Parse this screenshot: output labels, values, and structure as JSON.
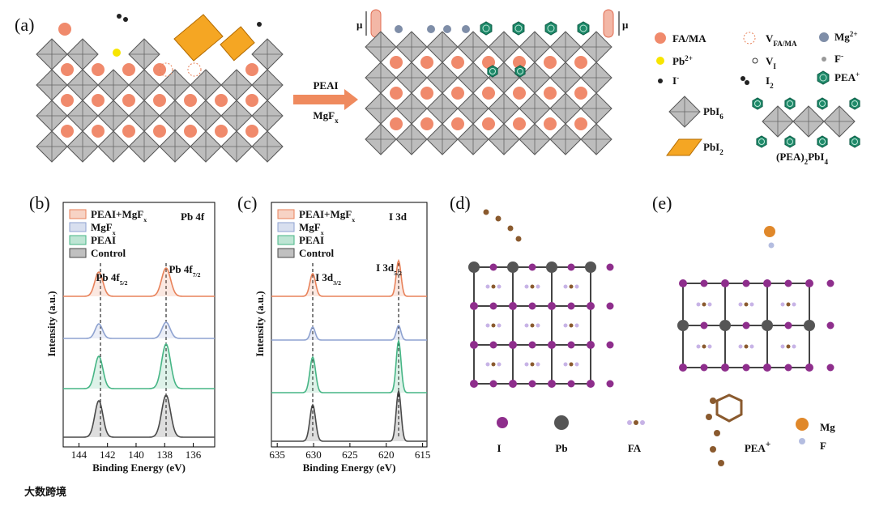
{
  "panel_a": {
    "label": "(a)",
    "mu_left": "μ",
    "mu_right": "μ",
    "arrow_top": [
      {
        "t": "PEAI"
      }
    ],
    "arrow_bottom": [
      {
        "t": "MgF"
      },
      {
        "t": "x",
        "s": "sub"
      }
    ],
    "legend": [
      [
        {
          "t": "FA/MA"
        }
      ],
      [
        {
          "t": "V"
        },
        {
          "t": "FA/MA",
          "s": "sub"
        }
      ],
      [
        {
          "t": "Mg"
        },
        {
          "t": "2+",
          "s": "sup"
        }
      ],
      [
        {
          "t": "Pb"
        },
        {
          "t": "2+",
          "s": "sup"
        }
      ],
      [
        {
          "t": "V"
        },
        {
          "t": "I",
          "s": "sub"
        }
      ],
      [
        {
          "t": "F"
        },
        {
          "t": "-",
          "s": "sup"
        }
      ],
      [
        {
          "t": "I"
        },
        {
          "t": "-",
          "s": "sup"
        }
      ],
      [
        {
          "t": "I"
        },
        {
          "t": "2",
          "s": "sub"
        }
      ],
      [
        {
          "t": "PEA"
        },
        {
          "t": "+",
          "s": "sup"
        }
      ],
      [
        {
          "t": "PbI"
        },
        {
          "t": "6",
          "s": "sub"
        }
      ],
      [
        {
          "t": "PbI"
        },
        {
          "t": "2",
          "s": "sub"
        }
      ],
      [
        {
          "t": "(PEA)"
        },
        {
          "t": "2",
          "s": "sub"
        },
        {
          "t": "PbI"
        },
        {
          "t": "4",
          "s": "sub"
        }
      ]
    ]
  },
  "panel_b": {
    "label": "(b)",
    "x_label": "Binding Energy (eV)",
    "y_label": "Intensity (a.u.)",
    "core_level": "Pb 4f",
    "peaks": [
      [
        {
          "t": "Pb 4f"
        },
        {
          "t": "5/2",
          "s": "sub"
        }
      ],
      [
        {
          "t": "Pb 4f"
        },
        {
          "t": "7/2",
          "s": "sub"
        }
      ]
    ],
    "series": [
      {
        "name": [
          {
            "t": "PEAI+MgF"
          },
          {
            "t": "x",
            "s": "sub"
          }
        ],
        "color": "#e8825a"
      },
      {
        "name": [
          {
            "t": "MgF"
          },
          {
            "t": "x",
            "s": "sub"
          }
        ],
        "color": "#8ea2d0"
      },
      {
        "name": [
          {
            "t": "PEAI"
          }
        ],
        "color": "#46b585"
      },
      {
        "name": [
          {
            "t": "Control"
          }
        ],
        "color": "#4a4a4a"
      }
    ],
    "xlim": [
      145.1,
      134.5
    ],
    "xticks": [
      144,
      142,
      140,
      138,
      136
    ]
  },
  "panel_c": {
    "label": "(c)",
    "x_label": "Binding Energy (eV)",
    "y_label": "Intensity (a.u.)",
    "core_level": "I 3d",
    "peaks": [
      [
        {
          "t": "I 3d"
        },
        {
          "t": "3/2",
          "s": "sub"
        }
      ],
      [
        {
          "t": "I 3d"
        },
        {
          "t": "5/2",
          "s": "sub"
        }
      ]
    ],
    "series": [
      {
        "name": [
          {
            "t": "PEAI+MgF"
          },
          {
            "t": "x",
            "s": "sub"
          }
        ],
        "color": "#e8825a"
      },
      {
        "name": [
          {
            "t": "MgF"
          },
          {
            "t": "x",
            "s": "sub"
          }
        ],
        "color": "#8ea2d0"
      },
      {
        "name": [
          {
            "t": "PEAI"
          }
        ],
        "color": "#46b585"
      },
      {
        "name": [
          {
            "t": "Control"
          }
        ],
        "color": "#4a4a4a"
      }
    ],
    "xlim": [
      635.8,
      614.4
    ],
    "xticks": [
      635,
      630,
      625,
      620,
      615
    ]
  },
  "panel_d": {
    "label": "(d)",
    "legend": [
      [
        {
          "t": "I"
        }
      ],
      [
        {
          "t": "Pb"
        }
      ],
      [
        {
          "t": "FA"
        }
      ],
      [
        {
          "t": "PEA"
        },
        {
          "t": "+",
          "s": "sup"
        }
      ]
    ]
  },
  "panel_e": {
    "label": "(e)",
    "legend": [
      [
        {
          "t": "Mg"
        }
      ],
      [
        {
          "t": "F"
        }
      ]
    ]
  },
  "watermark": "大数跨境"
}
